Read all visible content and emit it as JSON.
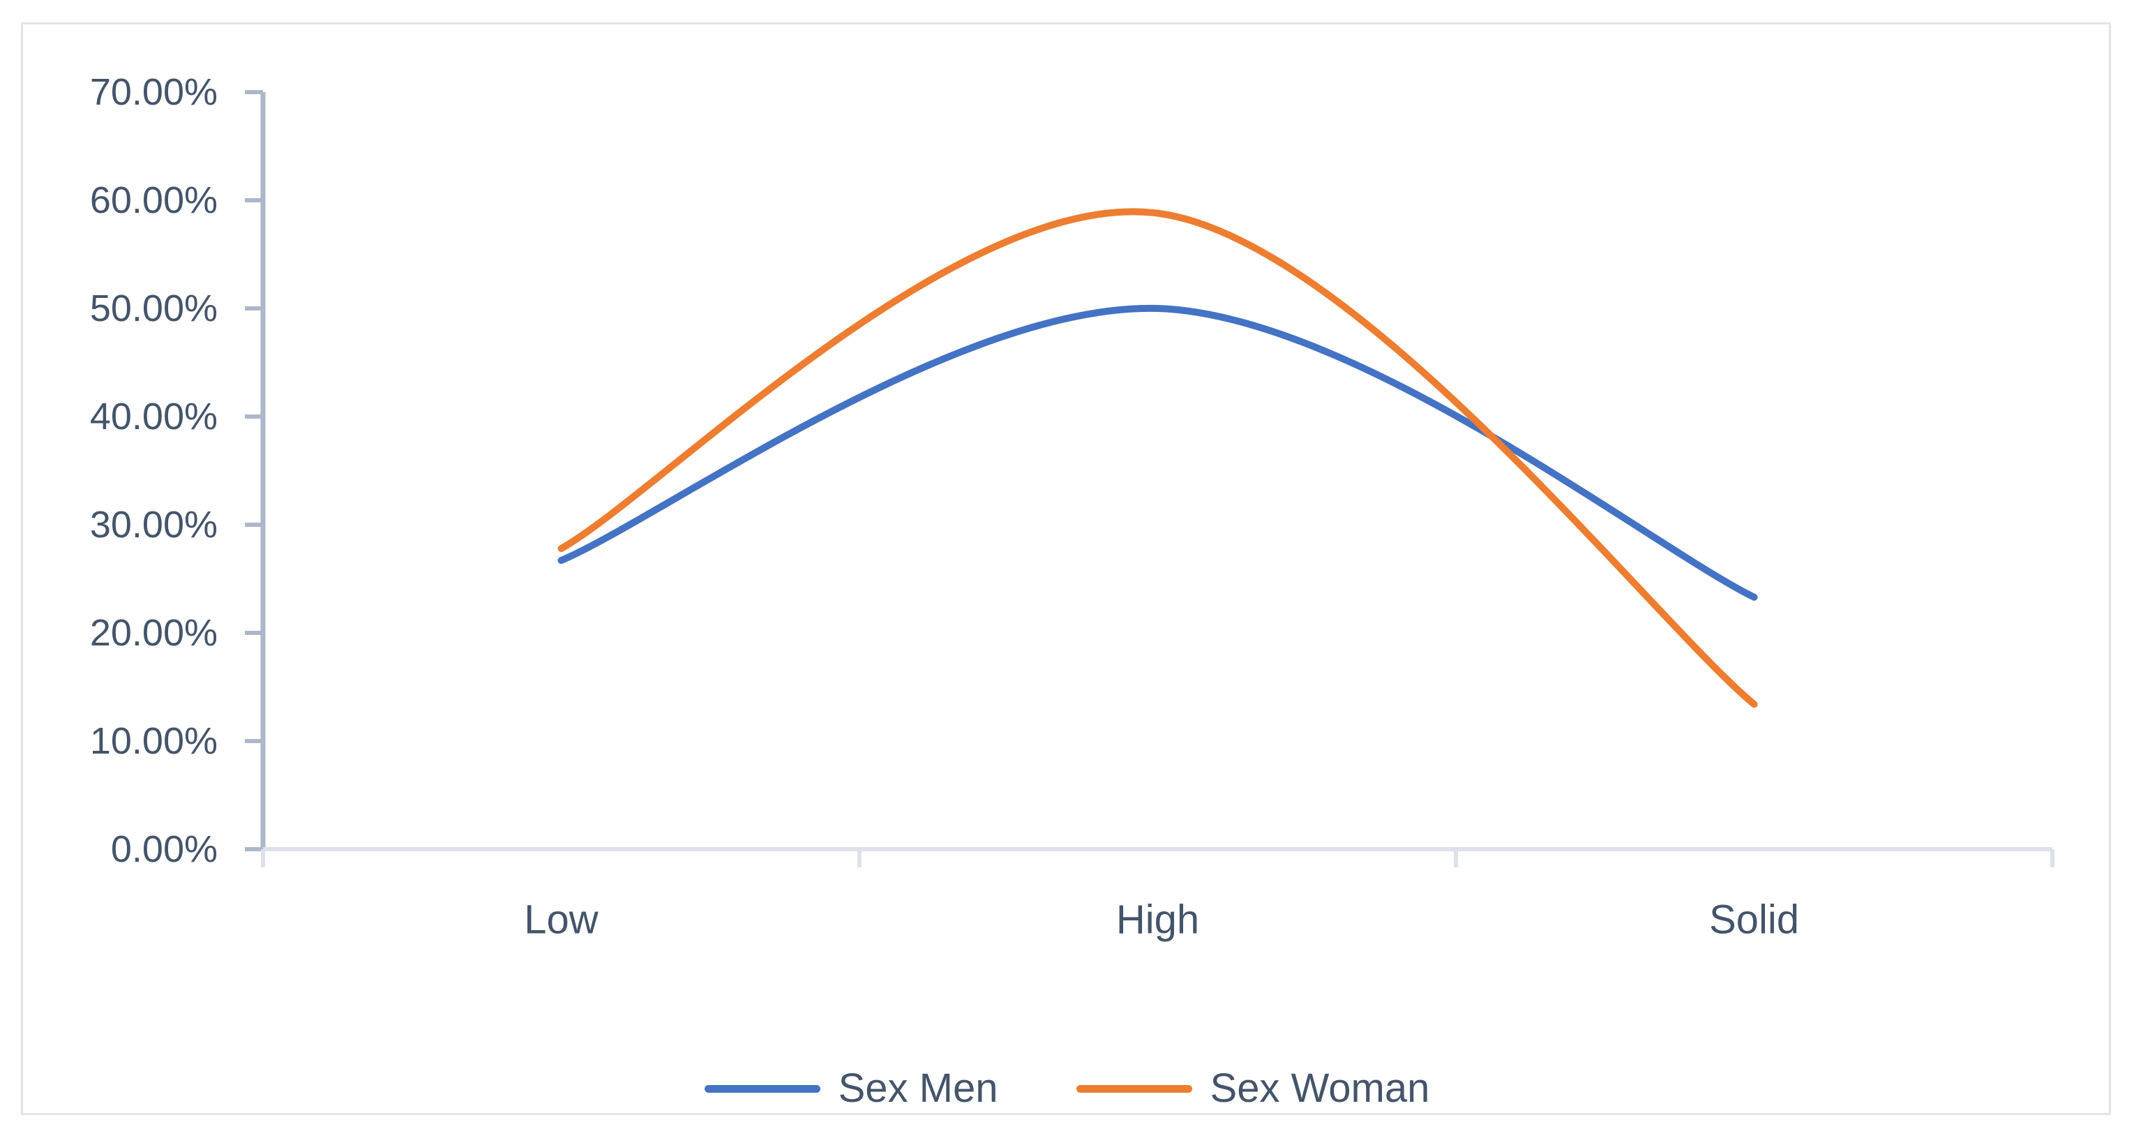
{
  "chart_data": {
    "type": "line",
    "title": "",
    "categories": [
      "Low",
      "High",
      "Solid"
    ],
    "series": [
      {
        "name": "Sex Men",
        "color": "#4472C4",
        "values": [
          26.7,
          50.0,
          23.3
        ]
      },
      {
        "name": "Sex Woman",
        "color": "#ED7D31",
        "values": [
          27.8,
          58.8,
          13.4
        ]
      }
    ],
    "y_tick_labels": [
      "70.00%",
      "60.00%",
      "50.00%",
      "40.00%",
      "30.00%",
      "20.00%",
      "10.00%",
      "0.00%"
    ],
    "ylim": [
      0,
      70
    ],
    "y_tick_step": 10,
    "y_unit": "percent",
    "grid": false,
    "smooth_lines": true,
    "legend_position": "bottom",
    "axis_text_color": "#44546A",
    "y_axis_color": "#ACB7CA",
    "x_axis_color": "#DDE1E9"
  }
}
